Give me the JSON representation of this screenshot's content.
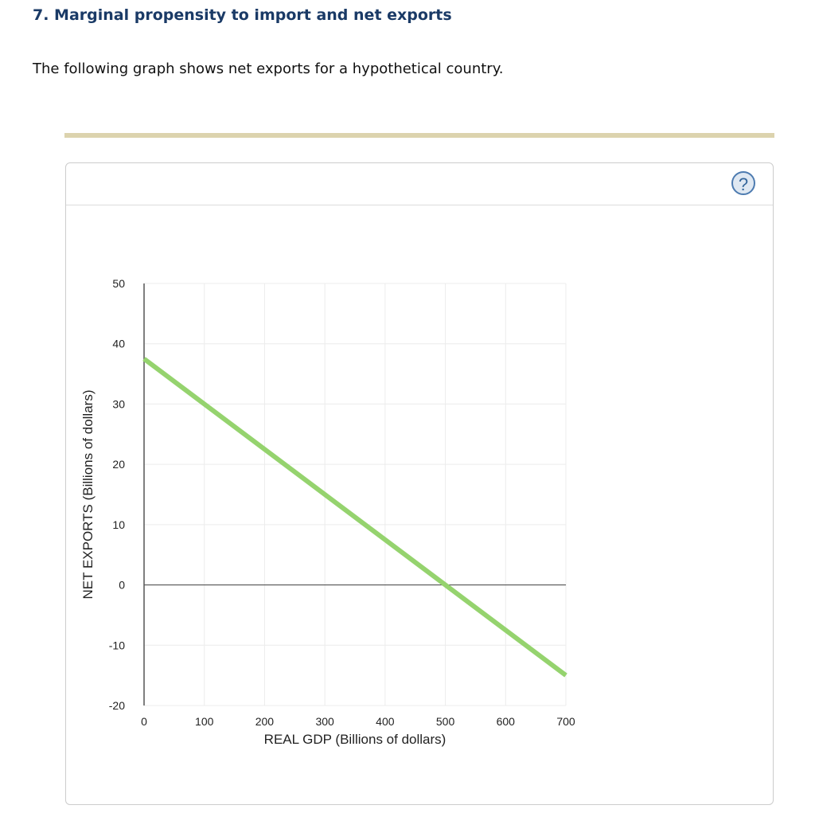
{
  "header": {
    "title": "7. Marginal propensity to import and net exports",
    "intro": "The following graph shows net exports for a hypothetical country.",
    "help_icon": "question-circle-icon"
  },
  "chart_data": {
    "type": "line",
    "xlabel": "REAL GDP (Billions of dollars)",
    "ylabel": "NET EXPORTS (Billions of dollars)",
    "xlim": [
      0,
      700
    ],
    "ylim": [
      -20,
      50
    ],
    "xticks": [
      0,
      100,
      200,
      300,
      400,
      500,
      600,
      700
    ],
    "yticks": [
      50,
      40,
      30,
      20,
      10,
      0,
      -10,
      -20
    ],
    "grid": true,
    "series": [
      {
        "color": "#95d36e",
        "points": [
          [
            0,
            37.5
          ],
          [
            700,
            -15
          ]
        ]
      }
    ]
  }
}
